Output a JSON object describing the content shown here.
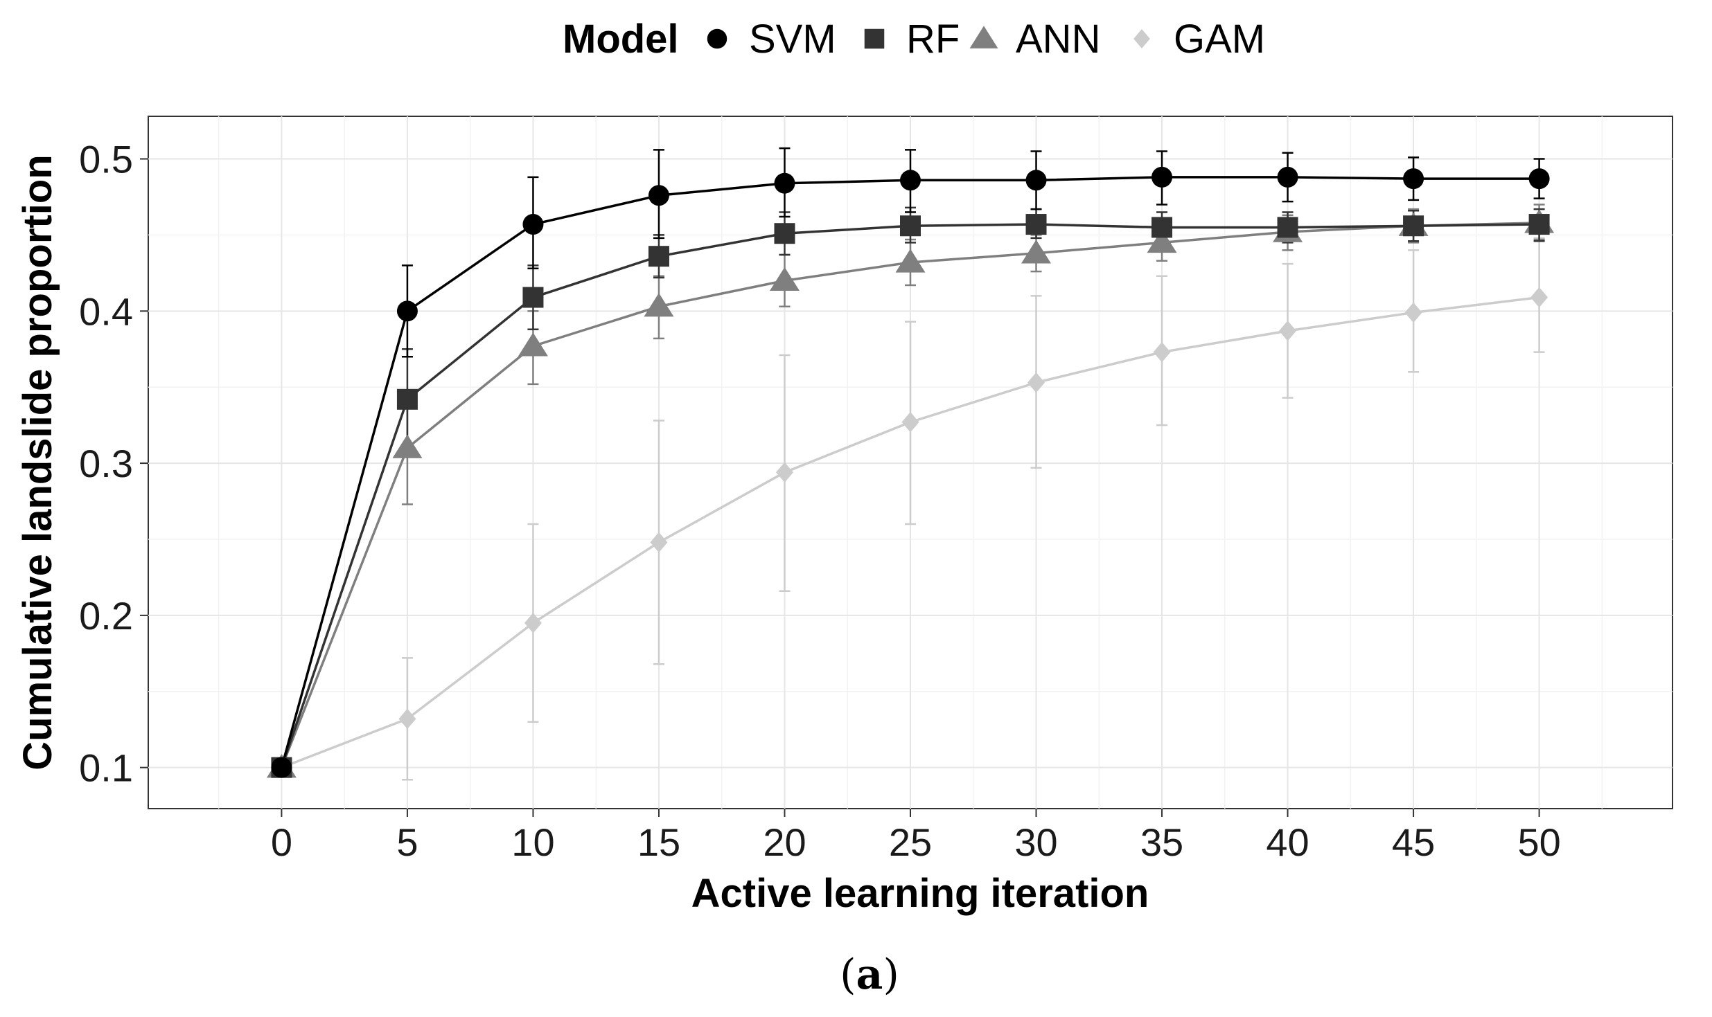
{
  "caption": {
    "open": "(",
    "letter": "a",
    "close": ")"
  },
  "chart_data": {
    "type": "line",
    "xlabel": "Active learning iteration",
    "ylabel": "Cumulative landslide proportion",
    "xlim": [
      -5.3,
      55.3
    ],
    "ylim": [
      0.073,
      0.528
    ],
    "x_ticks": [
      0,
      5,
      10,
      15,
      20,
      25,
      30,
      35,
      40,
      45,
      50
    ],
    "y_ticks": [
      0.1,
      0.2,
      0.3,
      0.4,
      0.5
    ],
    "x_tick_labels": [
      "0",
      "5",
      "10",
      "15",
      "20",
      "25",
      "30",
      "35",
      "40",
      "45",
      "50"
    ],
    "y_tick_labels": [
      "0.1",
      "0.2",
      "0.3",
      "0.4",
      "0.5"
    ],
    "grid": true,
    "legend": {
      "title": "Model",
      "position": "top"
    },
    "x": [
      0,
      5,
      10,
      15,
      20,
      25,
      30,
      35,
      40,
      45,
      50
    ],
    "series": [
      {
        "name": "SVM",
        "marker": "circle",
        "color": "#000000",
        "values": [
          0.1,
          0.4,
          0.457,
          0.476,
          0.484,
          0.486,
          0.486,
          0.488,
          0.488,
          0.487,
          0.487
        ],
        "err_low": [
          0.1,
          0.37,
          0.428,
          0.448,
          0.462,
          0.465,
          0.467,
          0.47,
          0.472,
          0.473,
          0.474
        ],
        "err_high": [
          0.1,
          0.43,
          0.488,
          0.506,
          0.507,
          0.506,
          0.505,
          0.505,
          0.504,
          0.501,
          0.5
        ]
      },
      {
        "name": "RF",
        "marker": "square",
        "color": "#333333",
        "values": [
          0.1,
          0.342,
          0.409,
          0.436,
          0.451,
          0.456,
          0.457,
          0.455,
          0.455,
          0.456,
          0.457
        ],
        "err_low": [
          0.1,
          0.31,
          0.388,
          0.422,
          0.437,
          0.445,
          0.448,
          0.446,
          0.445,
          0.446,
          0.446
        ],
        "err_high": [
          0.1,
          0.375,
          0.43,
          0.45,
          0.465,
          0.468,
          0.467,
          0.465,
          0.465,
          0.466,
          0.467
        ]
      },
      {
        "name": "ANN",
        "marker": "triangle",
        "color": "#7f7f7f",
        "values": [
          0.1,
          0.31,
          0.377,
          0.403,
          0.42,
          0.432,
          0.438,
          0.445,
          0.452,
          0.456,
          0.458
        ],
        "err_low": [
          0.1,
          0.273,
          0.352,
          0.382,
          0.403,
          0.417,
          0.426,
          0.433,
          0.44,
          0.445,
          0.447
        ],
        "err_high": [
          0.1,
          0.345,
          0.4,
          0.423,
          0.437,
          0.447,
          0.45,
          0.457,
          0.463,
          0.467,
          0.47
        ]
      },
      {
        "name": "GAM",
        "marker": "diamond",
        "color": "#cccccc",
        "values": [
          0.1,
          0.132,
          0.195,
          0.248,
          0.294,
          0.327,
          0.353,
          0.373,
          0.387,
          0.399,
          0.409
        ],
        "err_low": [
          0.1,
          0.092,
          0.13,
          0.168,
          0.216,
          0.26,
          0.297,
          0.325,
          0.343,
          0.36,
          0.373
        ],
        "err_high": [
          0.1,
          0.172,
          0.26,
          0.328,
          0.371,
          0.393,
          0.41,
          0.423,
          0.431,
          0.44,
          0.448
        ]
      }
    ]
  }
}
